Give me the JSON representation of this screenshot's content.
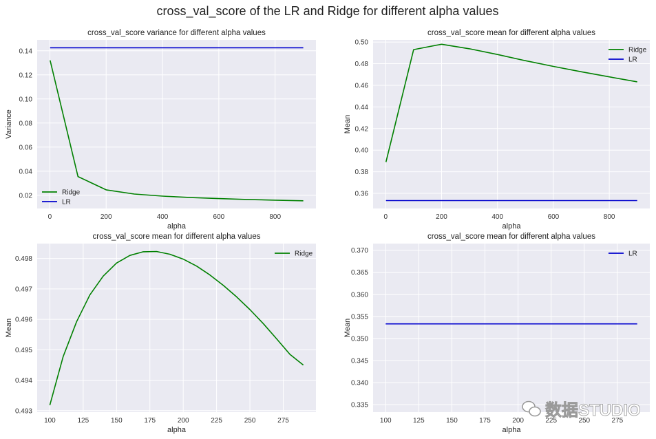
{
  "figure": {
    "suptitle": "cross_val_score of the LR and Ridge for different alpha values",
    "background": "#EAEAF2",
    "watermark": "数据STUDIO"
  },
  "chart_data": [
    {
      "type": "line",
      "title": "cross_val_score variance for different alpha values",
      "xlabel": "alpha",
      "ylabel": "Variance",
      "xlim": [
        -45,
        945
      ],
      "ylim": [
        0.009,
        0.149
      ],
      "xticks": [
        0,
        200,
        400,
        600,
        800
      ],
      "yticks": [
        0.02,
        0.04,
        0.06,
        0.08,
        0.1,
        0.12,
        0.14
      ],
      "ytick_labels": [
        "0.02",
        "0.04",
        "0.06",
        "0.08",
        "0.10",
        "0.12",
        "0.14"
      ],
      "legend": "lower-left",
      "series": [
        {
          "name": "Ridge",
          "color": "#008000",
          "x": [
            1,
            100,
            200,
            300,
            400,
            500,
            600,
            700,
            800,
            900
          ],
          "y": [
            0.132,
            0.0355,
            0.0245,
            0.021,
            0.0193,
            0.0181,
            0.0172,
            0.0165,
            0.0159,
            0.0154
          ]
        },
        {
          "name": "LR",
          "color": "#0000CD",
          "x": [
            1,
            900
          ],
          "y": [
            0.1425,
            0.1425
          ]
        }
      ]
    },
    {
      "type": "line",
      "title": "cross_val_score mean for different alpha values",
      "xlabel": "alpha",
      "ylabel": "Mean",
      "xlim": [
        -45,
        945
      ],
      "ylim": [
        0.346,
        0.502
      ],
      "xticks": [
        0,
        200,
        400,
        600,
        800
      ],
      "yticks": [
        0.36,
        0.38,
        0.4,
        0.42,
        0.44,
        0.46,
        0.48,
        0.5
      ],
      "ytick_labels": [
        "0.36",
        "0.38",
        "0.40",
        "0.42",
        "0.44",
        "0.46",
        "0.48",
        "0.50"
      ],
      "legend": "top-right",
      "series": [
        {
          "name": "Ridge",
          "color": "#008000",
          "x": [
            1,
            100,
            200,
            300,
            400,
            500,
            600,
            700,
            800,
            900
          ],
          "y": [
            0.389,
            0.493,
            0.498,
            0.4938,
            0.4885,
            0.4828,
            0.4775,
            0.4725,
            0.4678,
            0.4632
          ]
        },
        {
          "name": "LR",
          "color": "#0000CD",
          "x": [
            1,
            900
          ],
          "y": [
            0.3533,
            0.3533
          ]
        }
      ]
    },
    {
      "type": "line",
      "title": "cross_val_score mean for different alpha values",
      "xlabel": "alpha",
      "ylabel": "Mean",
      "xlim": [
        90.5,
        299.5
      ],
      "ylim": [
        0.49295,
        0.49849
      ],
      "xticks": [
        100,
        125,
        150,
        175,
        200,
        225,
        250,
        275
      ],
      "yticks": [
        0.493,
        0.494,
        0.495,
        0.496,
        0.497,
        0.498
      ],
      "ytick_labels": [
        "0.493",
        "0.494",
        "0.495",
        "0.496",
        "0.497",
        "0.498"
      ],
      "legend": "top-right",
      "series": [
        {
          "name": "Ridge",
          "color": "#008000",
          "x": [
            100,
            110,
            120,
            130,
            140,
            150,
            160,
            170,
            180,
            190,
            200,
            210,
            220,
            230,
            240,
            250,
            260,
            270,
            280,
            290
          ],
          "y": [
            0.49318,
            0.49478,
            0.49592,
            0.4968,
            0.49742,
            0.49785,
            0.4981,
            0.49822,
            0.49823,
            0.49814,
            0.49798,
            0.49775,
            0.49746,
            0.49712,
            0.49674,
            0.49632,
            0.49586,
            0.49536,
            0.49485,
            0.4945
          ]
        }
      ]
    },
    {
      "type": "line",
      "title": "cross_val_score mean for different alpha values",
      "xlabel": "alpha",
      "ylabel": "Mean",
      "xlim": [
        90.5,
        299.5
      ],
      "ylim": [
        0.3333,
        0.3715
      ],
      "xticks": [
        100,
        125,
        150,
        175,
        200,
        225,
        250,
        275
      ],
      "yticks": [
        0.335,
        0.34,
        0.345,
        0.35,
        0.355,
        0.36,
        0.365,
        0.37
      ],
      "ytick_labels": [
        "0.335",
        "0.340",
        "0.345",
        "0.350",
        "0.355",
        "0.360",
        "0.365",
        "0.370"
      ],
      "legend": "top-right",
      "series": [
        {
          "name": "LR",
          "color": "#0000CD",
          "x": [
            100,
            290
          ],
          "y": [
            0.3533,
            0.3533
          ]
        }
      ]
    }
  ]
}
